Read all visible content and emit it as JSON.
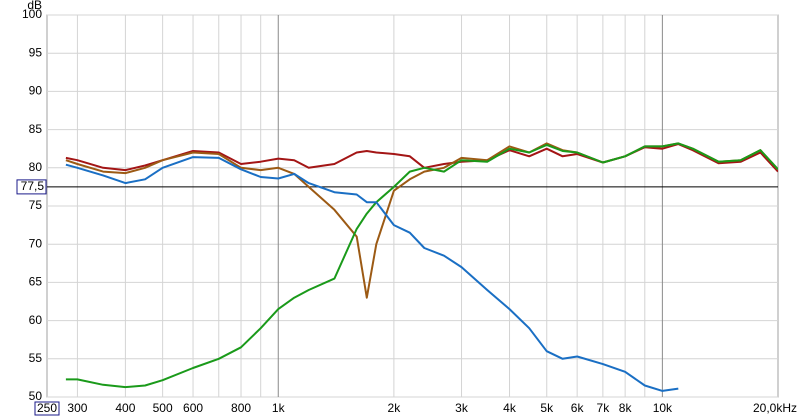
{
  "chart_data": {
    "type": "line",
    "ylabel": "dB",
    "xscale": "log",
    "xlim": [
      250,
      20000
    ],
    "ylim": [
      50,
      100
    ],
    "yticks": [
      50,
      55,
      60,
      65,
      70,
      75,
      80,
      85,
      90,
      95,
      100
    ],
    "xticks": [
      250,
      300,
      400,
      500,
      600,
      800,
      {
        "value": 1000,
        "label": "1k"
      },
      {
        "value": 2000,
        "label": "2k"
      },
      {
        "value": 3000,
        "label": "3k"
      },
      {
        "value": 4000,
        "label": "4k"
      },
      {
        "value": 5000,
        "label": "5k"
      },
      {
        "value": 6000,
        "label": "6k"
      },
      {
        "value": 7000,
        "label": "7k"
      },
      {
        "value": 8000,
        "label": "8k"
      },
      {
        "value": 10000,
        "label": "10k"
      },
      {
        "value": 20000,
        "label": "20,0kHz"
      }
    ],
    "minor_xticks": [
      700,
      900,
      9000
    ],
    "grid": true,
    "hline": {
      "value": 77.5,
      "label": "77,5"
    },
    "x": [
      280,
      300,
      350,
      400,
      450,
      500,
      600,
      700,
      800,
      900,
      1000,
      1100,
      1200,
      1400,
      1600,
      1700,
      1800,
      2000,
      2200,
      2400,
      2700,
      3000,
      3500,
      4000,
      4500,
      5000,
      5500,
      6000,
      7000,
      8000,
      9000,
      10000,
      11000,
      12000,
      14000,
      16000,
      18000,
      20000
    ],
    "series": [
      {
        "color": "#a31515",
        "values": [
          81.3,
          81,
          80,
          79.7,
          80.3,
          81,
          82.2,
          82,
          80.5,
          80.8,
          81.2,
          81,
          80,
          80.5,
          82,
          82.2,
          82,
          81.8,
          81.5,
          80,
          80.5,
          80.8,
          81,
          82.3,
          81.5,
          82.5,
          81.5,
          81.8,
          80.7,
          81.5,
          82.7,
          82.5,
          83.1,
          82.3,
          80.6,
          80.8,
          82,
          79.5
        ]
      },
      {
        "color": "#9c5a14",
        "values": [
          81,
          80.5,
          79.5,
          79.3,
          80,
          81,
          82,
          81.8,
          80,
          79.7,
          80,
          79.2,
          77.5,
          74.5,
          71,
          63,
          70,
          77,
          78.5,
          79.5,
          80,
          81.3,
          81,
          82.8,
          82,
          83.2,
          82.3,
          82,
          80.7,
          81.5,
          82.8,
          82.8,
          83.2,
          82.5,
          80.8,
          81,
          82.3,
          79.8
        ]
      },
      {
        "color": "#1a9a1a",
        "values": [
          52.3,
          52.3,
          51.6,
          51.3,
          51.5,
          52.2,
          53.8,
          55,
          56.5,
          59,
          61.5,
          63,
          64,
          65.5,
          72,
          74,
          75.5,
          77.5,
          79.5,
          80,
          79.5,
          81,
          80.8,
          82.5,
          82,
          83,
          82.2,
          82,
          80.7,
          81.5,
          82.8,
          82.8,
          83.2,
          82.5,
          80.8,
          81,
          82.3,
          79.8
        ]
      },
      {
        "color": "#1a6fc4",
        "values": [
          80.4,
          80,
          79,
          78,
          78.5,
          80,
          81.4,
          81.3,
          79.8,
          78.8,
          78.6,
          79.2,
          78,
          76.8,
          76.5,
          75.5,
          75.5,
          72.5,
          71.5,
          69.5,
          68.5,
          67,
          64,
          61.5,
          59,
          56,
          55,
          55.3,
          54.3,
          53.3,
          51.5,
          50.8,
          51.1,
          null,
          null,
          null,
          null,
          null
        ]
      }
    ]
  }
}
